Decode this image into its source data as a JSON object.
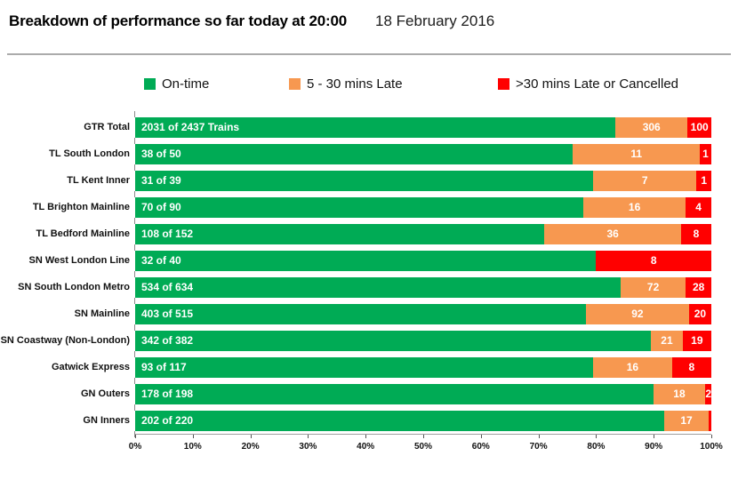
{
  "header": {
    "title": "Breakdown of performance so far today at 20:00",
    "date": "18 February 2016"
  },
  "legend": [
    {
      "label": "On-time",
      "color": "#00AB55"
    },
    {
      "label": "5 - 30 mins Late",
      "color": "#F79850"
    },
    {
      "label": ">30 mins Late or Cancelled",
      "color": "#FF0000"
    }
  ],
  "chart_data": {
    "type": "bar",
    "orientation": "horizontal",
    "stacked": true,
    "title": "Breakdown of performance so far today at 20:00",
    "subtitle": "18 February 2016",
    "xlabel": "",
    "ylabel": "",
    "xlim": [
      0,
      100
    ],
    "x_ticks": [
      "0%",
      "10%",
      "20%",
      "30%",
      "40%",
      "50%",
      "60%",
      "70%",
      "80%",
      "90%",
      "100%"
    ],
    "grid": false,
    "legend_position": "top",
    "series_names": [
      "On-time",
      "5 - 30 mins Late",
      ">30 mins Late or Cancelled"
    ],
    "colors": {
      "on_time": "#00AB55",
      "late": "#F79850",
      "cancelled": "#FF0000"
    },
    "value_unit": "trains",
    "rows": [
      {
        "category": "GTR Total",
        "bar_label": "2031 of 2437 Trains",
        "on_time": 2031,
        "late": 306,
        "cancelled": 100,
        "total": 2437
      },
      {
        "category": "TL South London",
        "bar_label": "38 of 50",
        "on_time": 38,
        "late": 11,
        "cancelled": 1,
        "total": 50
      },
      {
        "category": "TL Kent Inner",
        "bar_label": "31 of 39",
        "on_time": 31,
        "late": 7,
        "cancelled": 1,
        "total": 39
      },
      {
        "category": "TL Brighton Mainline",
        "bar_label": "70 of 90",
        "on_time": 70,
        "late": 16,
        "cancelled": 4,
        "total": 90
      },
      {
        "category": "TL Bedford Mainline",
        "bar_label": "108 of 152",
        "on_time": 108,
        "late": 36,
        "cancelled": 8,
        "total": 152
      },
      {
        "category": "SN West London Line",
        "bar_label": "32 of 40",
        "on_time": 32,
        "late": 0,
        "cancelled": 8,
        "total": 40
      },
      {
        "category": "SN South London Metro",
        "bar_label": "534 of 634",
        "on_time": 534,
        "late": 72,
        "cancelled": 28,
        "total": 634
      },
      {
        "category": "SN Mainline",
        "bar_label": "403 of 515",
        "on_time": 403,
        "late": 92,
        "cancelled": 20,
        "total": 515
      },
      {
        "category": "SN Coastway (Non-London)",
        "bar_label": "342 of 382",
        "on_time": 342,
        "late": 21,
        "cancelled": 19,
        "total": 382
      },
      {
        "category": "Gatwick Express",
        "bar_label": "93 of 117",
        "on_time": 93,
        "late": 16,
        "cancelled": 8,
        "total": 117
      },
      {
        "category": "GN Outers",
        "bar_label": "178 of 198",
        "on_time": 178,
        "late": 18,
        "cancelled": 2,
        "total": 198
      },
      {
        "category": "GN Inners",
        "bar_label": "202 of 220",
        "on_time": 202,
        "late": 17,
        "cancelled": 1,
        "total": 220
      }
    ]
  }
}
